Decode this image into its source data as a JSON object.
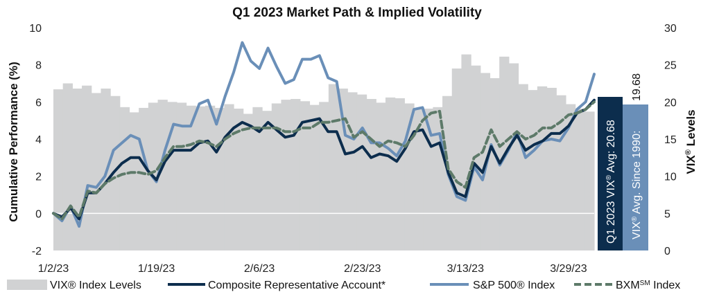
{
  "chart_data": {
    "type": "line",
    "title": "Q1 2023 Market Path & Implied Volatility",
    "ylabel_left": "Cumulative Performance (%)",
    "ylabel_right_prefix": "VIX",
    "ylabel_right_sup": "®",
    "ylabel_right_suffix": " Levels",
    "ylim_left": [
      -2,
      10
    ],
    "ylim_right": [
      0,
      30
    ],
    "yticks_left": [
      "-2",
      "0",
      "2",
      "4",
      "6",
      "8",
      "10"
    ],
    "yticks_right": [
      "0",
      "5",
      "10",
      "15",
      "20",
      "25",
      "30"
    ],
    "xtick_labels": [
      "1/2/23",
      "1/19/23",
      "2/6/23",
      "2/23/23",
      "3/13/23",
      "3/29/23"
    ],
    "xtick_positions": [
      0,
      12,
      24,
      36,
      48,
      60
    ],
    "vix_levels": [
      21.7,
      22.5,
      21.8,
      22.2,
      21.2,
      21.8,
      20.8,
      19.3,
      18.6,
      19.2,
      19.9,
      20.3,
      20.0,
      19.9,
      19.5,
      19.4,
      19.5,
      19.2,
      19.7,
      19.1,
      18.4,
      19.3,
      18.8,
      19.8,
      20.3,
      20.4,
      20.1,
      19.6,
      20.0,
      22.4,
      21.8,
      21.3,
      21.0,
      20.4,
      19.9,
      20.6,
      20.5,
      19.8,
      19.1,
      19.1,
      19.3,
      20.8,
      24.5,
      26.4,
      24.9,
      23.9,
      23.2,
      26.1,
      25.2,
      22.4,
      21.6,
      22.1,
      21.9,
      20.9,
      19.7,
      19.1,
      18.7
    ],
    "series": [
      {
        "name": "Composite Representative Account*",
        "values": [
          0.0,
          -0.2,
          0.3,
          -0.3,
          1.1,
          1.1,
          1.6,
          2.2,
          2.7,
          3.0,
          3.0,
          2.3,
          1.8,
          2.8,
          3.4,
          3.4,
          3.4,
          3.8,
          3.9,
          3.3,
          4.1,
          4.6,
          4.9,
          4.7,
          4.4,
          4.9,
          4.5,
          4.1,
          4.2,
          4.9,
          5.0,
          5.1,
          4.4,
          4.4,
          3.2,
          3.3,
          3.6,
          3.0,
          3.2,
          3.1,
          2.8,
          3.5,
          4.4,
          4.5,
          3.6,
          3.8,
          2.2,
          1.1,
          0.9,
          2.7,
          2.2,
          3.6,
          2.7,
          3.5,
          4.2,
          3.4,
          3.7,
          3.9,
          4.3,
          4.3,
          4.7,
          5.4,
          5.6,
          6.1
        ]
      },
      {
        "name": "S&P 500® Index",
        "values": [
          0.0,
          -0.4,
          0.4,
          -0.7,
          1.5,
          1.4,
          2.0,
          3.4,
          3.8,
          4.2,
          4.0,
          2.3,
          1.7,
          3.4,
          4.8,
          4.7,
          4.7,
          5.9,
          6.1,
          4.8,
          6.3,
          7.6,
          9.2,
          8.2,
          7.8,
          8.9,
          7.9,
          7.0,
          7.2,
          8.3,
          8.3,
          8.5,
          7.3,
          7.1,
          4.2,
          4.0,
          4.6,
          3.8,
          3.8,
          3.5,
          3.1,
          3.9,
          5.6,
          5.7,
          4.2,
          4.3,
          2.1,
          0.9,
          0.7,
          2.5,
          1.8,
          3.7,
          2.6,
          3.4,
          4.4,
          3.0,
          3.4,
          3.9,
          4.0,
          3.9,
          4.6,
          5.6,
          6.0,
          7.5
        ]
      },
      {
        "name": "BXM℠ Index",
        "values": [
          0.0,
          -0.3,
          0.4,
          -0.2,
          1.2,
          1.1,
          1.6,
          1.9,
          2.1,
          2.2,
          2.2,
          2.1,
          2.3,
          3.0,
          3.6,
          3.6,
          3.7,
          3.9,
          3.8,
          3.6,
          4.0,
          4.3,
          4.5,
          4.6,
          4.6,
          4.6,
          4.6,
          4.4,
          4.4,
          4.6,
          4.6,
          4.9,
          4.9,
          5.0,
          5.1,
          4.1,
          4.4,
          4.0,
          3.6,
          3.9,
          3.8,
          3.6,
          4.2,
          5.0,
          5.4,
          5.5,
          2.4,
          1.7,
          1.4,
          3.0,
          3.3,
          4.5,
          3.6,
          4.0,
          4.4,
          4.0,
          4.2,
          4.6,
          4.6,
          4.9,
          5.3,
          5.4,
          5.6,
          6.0
        ]
      }
    ],
    "legend": [
      {
        "label": "VIX® Index Levels",
        "type": "bar"
      },
      {
        "label": "Composite Representative Account*",
        "type": "solid"
      },
      {
        "label": "S&P 500® Index",
        "type": "solid"
      },
      {
        "label_prefix": "BXM",
        "label_sup": "SM",
        "label_suffix": " Index",
        "type": "dashed"
      }
    ],
    "annotation_boxes": [
      {
        "line1_prefix": "Q1 2023 VIX",
        "line1_sup": "®",
        "line1_suffix": " Avg: 20.68",
        "value": 20.68,
        "fill": "#0c2d4d"
      },
      {
        "line1_prefix": "VIX",
        "line1_sup": "®",
        "line1_suffix": " Avg. Since 1990:",
        "value_label": "19.68",
        "value": 19.68,
        "fill": "#6a8fb8"
      }
    ],
    "colors": {
      "vix_bars": "#d1d2d3",
      "composite": "#0c2d4d",
      "sp500": "#6a8fb8",
      "bxm": "#5d7a69",
      "zero_line": "#ffffff"
    }
  }
}
